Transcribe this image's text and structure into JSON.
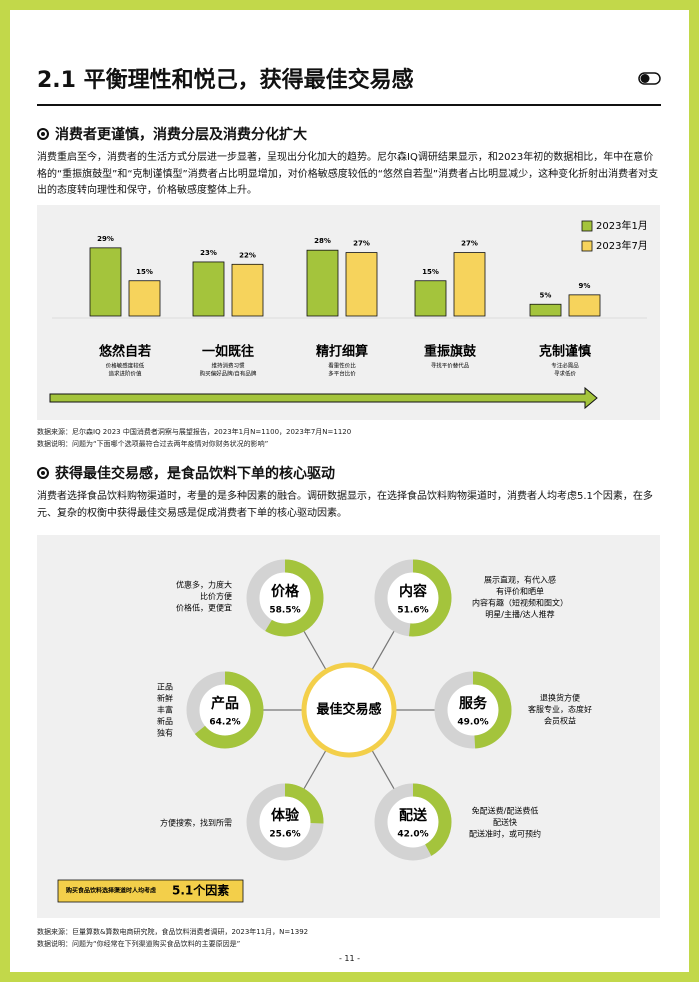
{
  "header": {
    "title": "2.1 平衡理性和悦己，获得最佳交易感"
  },
  "sections": [
    {
      "heading": "消费者更谨慎，消费分层及消费分化扩大",
      "paragraph": "消费重启至今，消费者的生活方式分层进一步显著，呈现出分化加大的趋势。尼尔森IQ调研结果显示，和2023年初的数据相比，年中在意价格的“重振旗鼓型”和“克制谨慎型”消费者占比明显增加，对价格敏感度较低的“悠然自若型”消费者占比明显减少，这种变化折射出消费者对支出的态度转向理性和保守，价格敏感度整体上升。"
    },
    {
      "heading": "获得最佳交易感，是食品饮料下单的核心驱动",
      "paragraph": "消费者选择食品饮料购物渠道时，考量的是多种因素的融合。调研数据显示，在选择食品饮料购物渠道时，消费者人均考虑5.1个因素，在多元、复杂的权衡中获得最佳交易感是促成消费者下单的核心驱动因素。"
    }
  ],
  "chart_data": {
    "type": "bar",
    "categories": [
      "悠然自若",
      "一如既往",
      "精打细算",
      "重振旗鼓",
      "克制谨慎"
    ],
    "category_notes": [
      [
        "价格敏感度较低",
        "追求进阶价值"
      ],
      [
        "维持消费习惯",
        "购买偏好品牌/自有品牌"
      ],
      [
        "看重性价比",
        "多平台比价"
      ],
      [
        "寻找平价替代品"
      ],
      [
        "专注必需品",
        "寻求低价"
      ]
    ],
    "series": [
      {
        "name": "2023年1月",
        "color": "#a4c43c",
        "values": [
          29,
          23,
          28,
          15,
          5
        ],
        "value_labels": [
          "29%",
          "23%",
          "28%",
          "15%",
          "5%"
        ]
      },
      {
        "name": "2023年7月",
        "color": "#f6d35c",
        "values": [
          15,
          22,
          27,
          27,
          9
        ],
        "value_labels": [
          "15%",
          "22%",
          "27%",
          "27%",
          "9%"
        ]
      }
    ]
  },
  "notes_1": [
    "数据来源：尼尔森IQ 2023 中国消费者洞察与展望报告，2023年1月N=1100，2023年7月N=1120",
    "数据说明：问题为“下面哪个选项最符合过去两年疫情对你财务状况的影响”"
  ],
  "diagram": {
    "center": "最佳交易感",
    "factors": [
      {
        "name": "价格",
        "value": 58.5,
        "value_label": "58.5%",
        "details": [
          "优惠多，力度大",
          "比价方便",
          "价格低，更便宜"
        ]
      },
      {
        "name": "内容",
        "value": 51.6,
        "value_label": "51.6%",
        "details": [
          "展示直观，有代入感",
          "有评价和晒单",
          "内容有趣（短视频和图文）",
          "明星/主播/达人推荐"
        ]
      },
      {
        "name": "产品",
        "value": 64.2,
        "value_label": "64.2%",
        "details": [
          "正品",
          "新鲜",
          "丰富",
          "新品",
          "独有"
        ]
      },
      {
        "name": "服务",
        "value": 49.0,
        "value_label": "49.0%",
        "details": [
          "退换货方便",
          "客服专业，态度好",
          "会员权益"
        ]
      },
      {
        "name": "体验",
        "value": 25.6,
        "value_label": "25.6%",
        "details": [
          "方便搜索，找到所需"
        ]
      },
      {
        "name": "配送",
        "value": 42.0,
        "value_label": "42.0%",
        "details": [
          "免配送费/配送费低",
          "配送快",
          "配送准时，或可预约"
        ]
      }
    ],
    "callout": {
      "text": "购买食品饮料选择渠道时人均考虑",
      "highlight": "5.1个因素"
    }
  },
  "notes_2": [
    "数据来源：巨量算数&算数电商研究院，食品饮料消费者调研，2023年11月，N=1392",
    "数据说明：问题为“你经常在下列渠道购买食品饮料的主要原因是”"
  ],
  "page_number": "- 11 -"
}
